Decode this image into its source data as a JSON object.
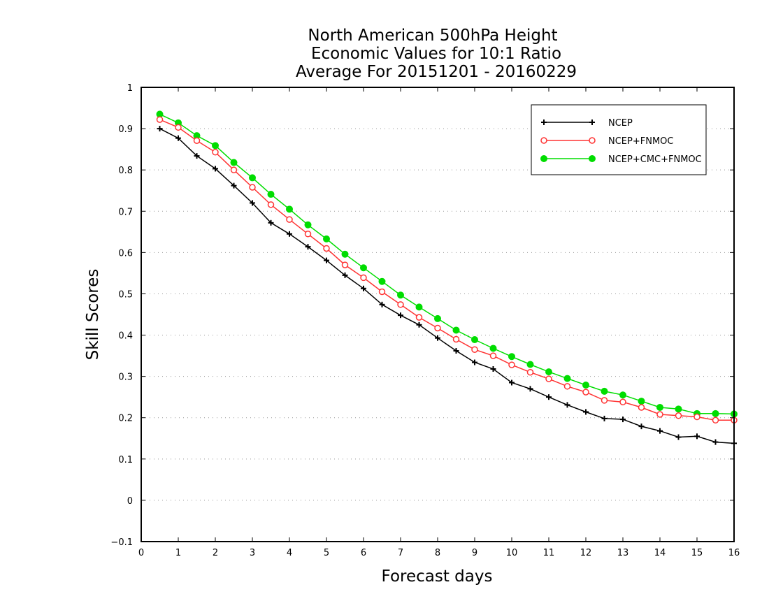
{
  "chart_data": {
    "type": "line",
    "title": [
      "North American 500hPa Height",
      "Economic Values for 10:1 Ratio",
      "Average For 20151201 - 20160229"
    ],
    "xlabel": "Forecast days",
    "ylabel": "Skill Scores",
    "xlim": [
      0,
      16
    ],
    "ylim": [
      -0.1,
      1
    ],
    "xticks": [
      "0",
      "1",
      "2",
      "3",
      "4",
      "5",
      "6",
      "7",
      "8",
      "9",
      "10",
      "11",
      "12",
      "13",
      "14",
      "15",
      "16"
    ],
    "yticks": [
      "−0.1",
      "0",
      "0.1",
      "0.2",
      "0.3",
      "0.4",
      "0.5",
      "0.6",
      "0.7",
      "0.8",
      "0.9",
      "1"
    ],
    "grid": "horizontal dotted",
    "legend_position": "top-right",
    "x": [
      0.5,
      1,
      1.5,
      2,
      2.5,
      3,
      3.5,
      4,
      4.5,
      5,
      5.5,
      6,
      6.5,
      7,
      7.5,
      8,
      8.5,
      9,
      9.5,
      10,
      10.5,
      11,
      11.5,
      12,
      12.5,
      13,
      13.5,
      14,
      14.5,
      15,
      15.5,
      16
    ],
    "series": [
      {
        "name": "NCEP",
        "color": "#000000",
        "marker": "plus",
        "values": [
          0.9,
          0.877,
          0.834,
          0.803,
          0.762,
          0.72,
          0.672,
          0.645,
          0.614,
          0.581,
          0.545,
          0.513,
          0.474,
          0.448,
          0.425,
          0.393,
          0.362,
          0.334,
          0.318,
          0.285,
          0.27,
          0.25,
          0.231,
          0.214,
          0.198,
          0.196,
          0.179,
          0.168,
          0.153,
          0.155,
          0.141,
          0.138
        ]
      },
      {
        "name": "NCEP+FNMOC",
        "color": "#ff3333",
        "marker": "open-circle",
        "values": [
          0.922,
          0.903,
          0.871,
          0.843,
          0.8,
          0.758,
          0.716,
          0.68,
          0.645,
          0.61,
          0.57,
          0.539,
          0.505,
          0.474,
          0.443,
          0.417,
          0.39,
          0.365,
          0.35,
          0.328,
          0.31,
          0.294,
          0.276,
          0.262,
          0.242,
          0.238,
          0.225,
          0.208,
          0.205,
          0.202,
          0.194,
          0.194
        ]
      },
      {
        "name": "NCEP+CMC+FNMOC",
        "color": "#00dd00",
        "marker": "filled-circle",
        "values": [
          0.935,
          0.914,
          0.883,
          0.859,
          0.818,
          0.781,
          0.741,
          0.705,
          0.667,
          0.633,
          0.596,
          0.563,
          0.53,
          0.497,
          0.468,
          0.44,
          0.412,
          0.389,
          0.368,
          0.348,
          0.329,
          0.311,
          0.295,
          0.279,
          0.264,
          0.255,
          0.24,
          0.225,
          0.221,
          0.21,
          0.21,
          0.209
        ]
      }
    ]
  }
}
